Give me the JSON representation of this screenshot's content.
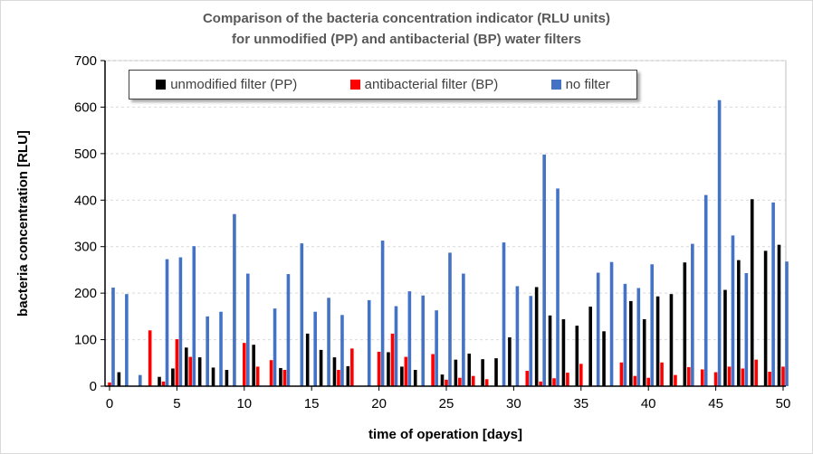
{
  "chart_data": {
    "type": "bar",
    "title_line1": "Comparison of the bacteria concentration indicator (RLU units)",
    "title_line2": "for unmodified (PP) and antibacterial (BP) water filters",
    "xlabel": "time of operation [days]",
    "ylabel": "bacteria concentration [RLU]",
    "xlim": [
      0,
      50
    ],
    "ylim": [
      0,
      700
    ],
    "xticks": [
      0,
      5,
      10,
      15,
      20,
      25,
      30,
      35,
      40,
      45,
      50
    ],
    "yticks": [
      0,
      100,
      200,
      300,
      400,
      500,
      600,
      700
    ],
    "grid": "horizontal dashed",
    "legend_position": "top",
    "x": [
      0,
      1,
      2,
      3,
      4,
      5,
      6,
      7,
      8,
      9,
      10,
      11,
      12,
      13,
      14,
      15,
      16,
      17,
      18,
      19,
      20,
      21,
      22,
      23,
      24,
      25,
      26,
      27,
      28,
      29,
      30,
      31,
      32,
      33,
      34,
      35,
      36,
      37,
      38,
      39,
      40,
      41,
      42,
      43,
      44,
      45,
      46,
      47,
      48,
      49,
      50
    ],
    "series": [
      {
        "name": "unmodified filter (PP)",
        "color": "#000000",
        "values": [
          null,
          30,
          null,
          null,
          20,
          38,
          83,
          62,
          40,
          35,
          null,
          89,
          null,
          39,
          null,
          113,
          78,
          62,
          43,
          null,
          null,
          73,
          42,
          35,
          null,
          25,
          57,
          70,
          58,
          60,
          105,
          null,
          213,
          152,
          144,
          130,
          171,
          118,
          null,
          183,
          144,
          193,
          198,
          266,
          null,
          null,
          207,
          271,
          402,
          291,
          304
        ]
      },
      {
        "name": "antibacterial filter (BP)",
        "color": "#ff0000",
        "values": [
          8,
          null,
          null,
          120,
          10,
          101,
          63,
          null,
          null,
          null,
          93,
          42,
          56,
          35,
          null,
          null,
          null,
          35,
          81,
          null,
          74,
          113,
          63,
          null,
          69,
          14,
          18,
          22,
          15,
          null,
          null,
          33,
          10,
          17,
          29,
          48,
          null,
          null,
          51,
          22,
          18,
          51,
          24,
          41,
          36,
          30,
          42,
          38,
          57,
          31,
          42
        ]
      },
      {
        "name": "no filter",
        "color": "#4472c4",
        "values": [
          212,
          198,
          24,
          null,
          273,
          277,
          301,
          150,
          160,
          370,
          242,
          null,
          167,
          241,
          307,
          160,
          190,
          153,
          null,
          185,
          313,
          172,
          204,
          195,
          163,
          287,
          242,
          null,
          null,
          309,
          215,
          194,
          498,
          425,
          null,
          null,
          244,
          267,
          220,
          211,
          262,
          null,
          null,
          306,
          411,
          615,
          324,
          243,
          null,
          395,
          268
        ]
      }
    ]
  }
}
